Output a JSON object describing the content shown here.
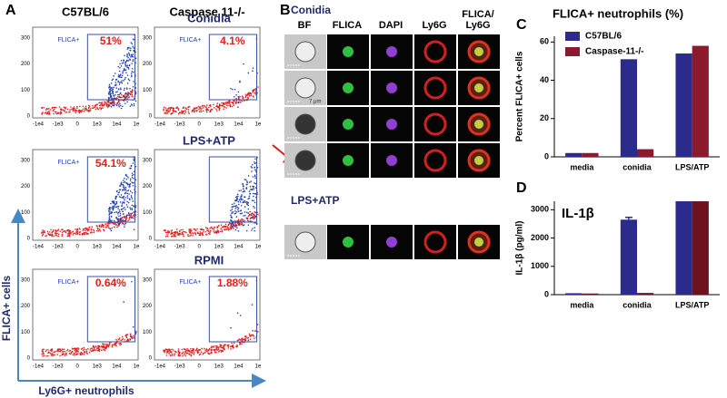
{
  "panel_a": {
    "letter": "A",
    "columns": [
      "C57BL/6",
      "Caspase 11-/-"
    ],
    "rows": [
      {
        "label": "Conidia",
        "plots": [
          {
            "gate_label": "FLICA+",
            "percent": "51%"
          },
          {
            "gate_label": "FLICA+",
            "percent": "4.1%"
          }
        ]
      },
      {
        "label": "LPS+ATP",
        "plots": [
          {
            "gate_label": "FLICA+",
            "percent": "54.1%"
          },
          {}
        ]
      },
      {
        "label": "RPMI",
        "plots": [
          {
            "gate_label": "FLICA+",
            "percent": "0.64%"
          },
          {
            "gate_label": "FLICA+",
            "percent": "1.88%"
          }
        ]
      }
    ],
    "x_ticks": [
      "-1e4",
      "-1e3",
      "0",
      "1e3",
      "1e4",
      "1e"
    ],
    "y_ticks": [
      "0",
      "100",
      "200",
      "300"
    ],
    "y_axis_label": "FLICA+ cells",
    "x_axis_label": "Ly6G+ neutrophils"
  },
  "panel_b": {
    "letter": "B",
    "title": "Conidia",
    "columns": [
      "BF",
      "FLICA",
      "DAPI",
      "Ly6G",
      "FLICA/ Ly6G"
    ],
    "scale": "7 μm",
    "row_label": "LPS+ATP"
  },
  "chart_data": [
    {
      "type": "bar",
      "panel_label": "C",
      "title": "FLICA+ neutrophils (%)",
      "y_label": "Percent FLICA+ cells",
      "categories": [
        "media",
        "conidia",
        "LPS/ATP"
      ],
      "series": [
        {
          "name": "C57BL/6",
          "color": "#2b2b8c",
          "values": [
            2,
            51,
            54
          ]
        },
        {
          "name": "Caspase-11-/-",
          "color": "#8c1a2c",
          "values": [
            2,
            4,
            58
          ]
        }
      ],
      "ylim": [
        0,
        63
      ],
      "yticks": [
        0,
        20,
        40,
        60
      ],
      "legend": "upper-left"
    },
    {
      "type": "bar",
      "panel_label": "D",
      "title": "IL-1β",
      "y_label": "IL-1β (pg/ml)",
      "categories": [
        "media",
        "conidia",
        "LPS/ATP"
      ],
      "series": [
        {
          "name": "C57BL/6",
          "color": "#2b2b8c",
          "values": [
            50,
            2650,
            3300
          ],
          "errors": [
            null,
            80,
            null
          ]
        },
        {
          "name": "Caspase-11-/-",
          "color": "#6e1220",
          "values": [
            40,
            60,
            3300
          ]
        }
      ],
      "ylim": [
        0,
        3300
      ],
      "yticks": [
        0,
        1000,
        2000,
        3000
      ],
      "legend": "none"
    }
  ]
}
